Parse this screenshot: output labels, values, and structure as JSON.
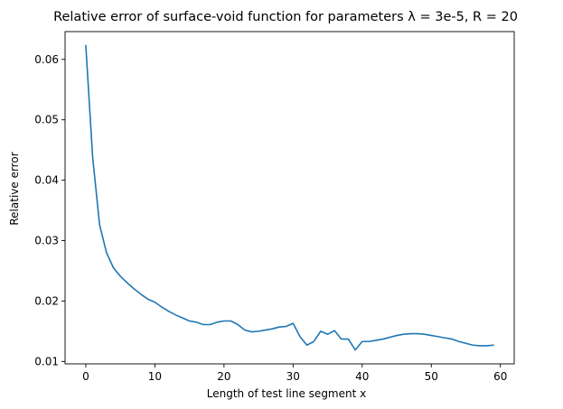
{
  "chart_data": {
    "type": "line",
    "title": "Relative error of surface-void function for parameters λ = 3e-5, R = 20",
    "xlabel": "Length of test line segment x",
    "ylabel": "Relative error",
    "xlim": [
      -3,
      62
    ],
    "ylim": [
      0.0096,
      0.0646
    ],
    "xticks": [
      0,
      10,
      20,
      30,
      40,
      50,
      60
    ],
    "yticks": [
      0.01,
      0.02,
      0.03,
      0.04,
      0.05,
      0.06
    ],
    "xtick_labels": [
      "0",
      "10",
      "20",
      "30",
      "40",
      "50",
      "60"
    ],
    "ytick_labels": [
      "0.01",
      "0.02",
      "0.03",
      "0.04",
      "0.05",
      "0.06"
    ],
    "grid": false,
    "colors": {
      "series": "#1f77b4",
      "axes": "#000000"
    },
    "series": [
      {
        "x": [
          0,
          1,
          2,
          3,
          4,
          5,
          6,
          7,
          8,
          9,
          10,
          11,
          12,
          13,
          14,
          15,
          16,
          17,
          18,
          19,
          20,
          21,
          22,
          23,
          24,
          25,
          26,
          27,
          28,
          29,
          30,
          31,
          32,
          33,
          34,
          35,
          36,
          37,
          38,
          39,
          40,
          41,
          42,
          43,
          44,
          45,
          46,
          47,
          48,
          49,
          50,
          51,
          52,
          53,
          54,
          55,
          56,
          57,
          58,
          59
        ],
        "values": [
          0.0623,
          0.0437,
          0.0326,
          0.028,
          0.0255,
          0.0241,
          0.023,
          0.022,
          0.0211,
          0.0203,
          0.0198,
          0.019,
          0.0183,
          0.0177,
          0.0172,
          0.0167,
          0.0165,
          0.0161,
          0.0161,
          0.0165,
          0.0167,
          0.0167,
          0.0161,
          0.0152,
          0.0149,
          0.015,
          0.0152,
          0.0154,
          0.0157,
          0.0158,
          0.0163,
          0.0141,
          0.0127,
          0.0133,
          0.015,
          0.0145,
          0.0151,
          0.0137,
          0.0137,
          0.0119,
          0.0133,
          0.0133,
          0.0135,
          0.0137,
          0.014,
          0.0143,
          0.0145,
          0.0146,
          0.0146,
          0.0145,
          0.0143,
          0.0141,
          0.0139,
          0.0137,
          0.0133,
          0.013,
          0.0127,
          0.0126,
          0.0126,
          0.0127
        ]
      }
    ]
  }
}
